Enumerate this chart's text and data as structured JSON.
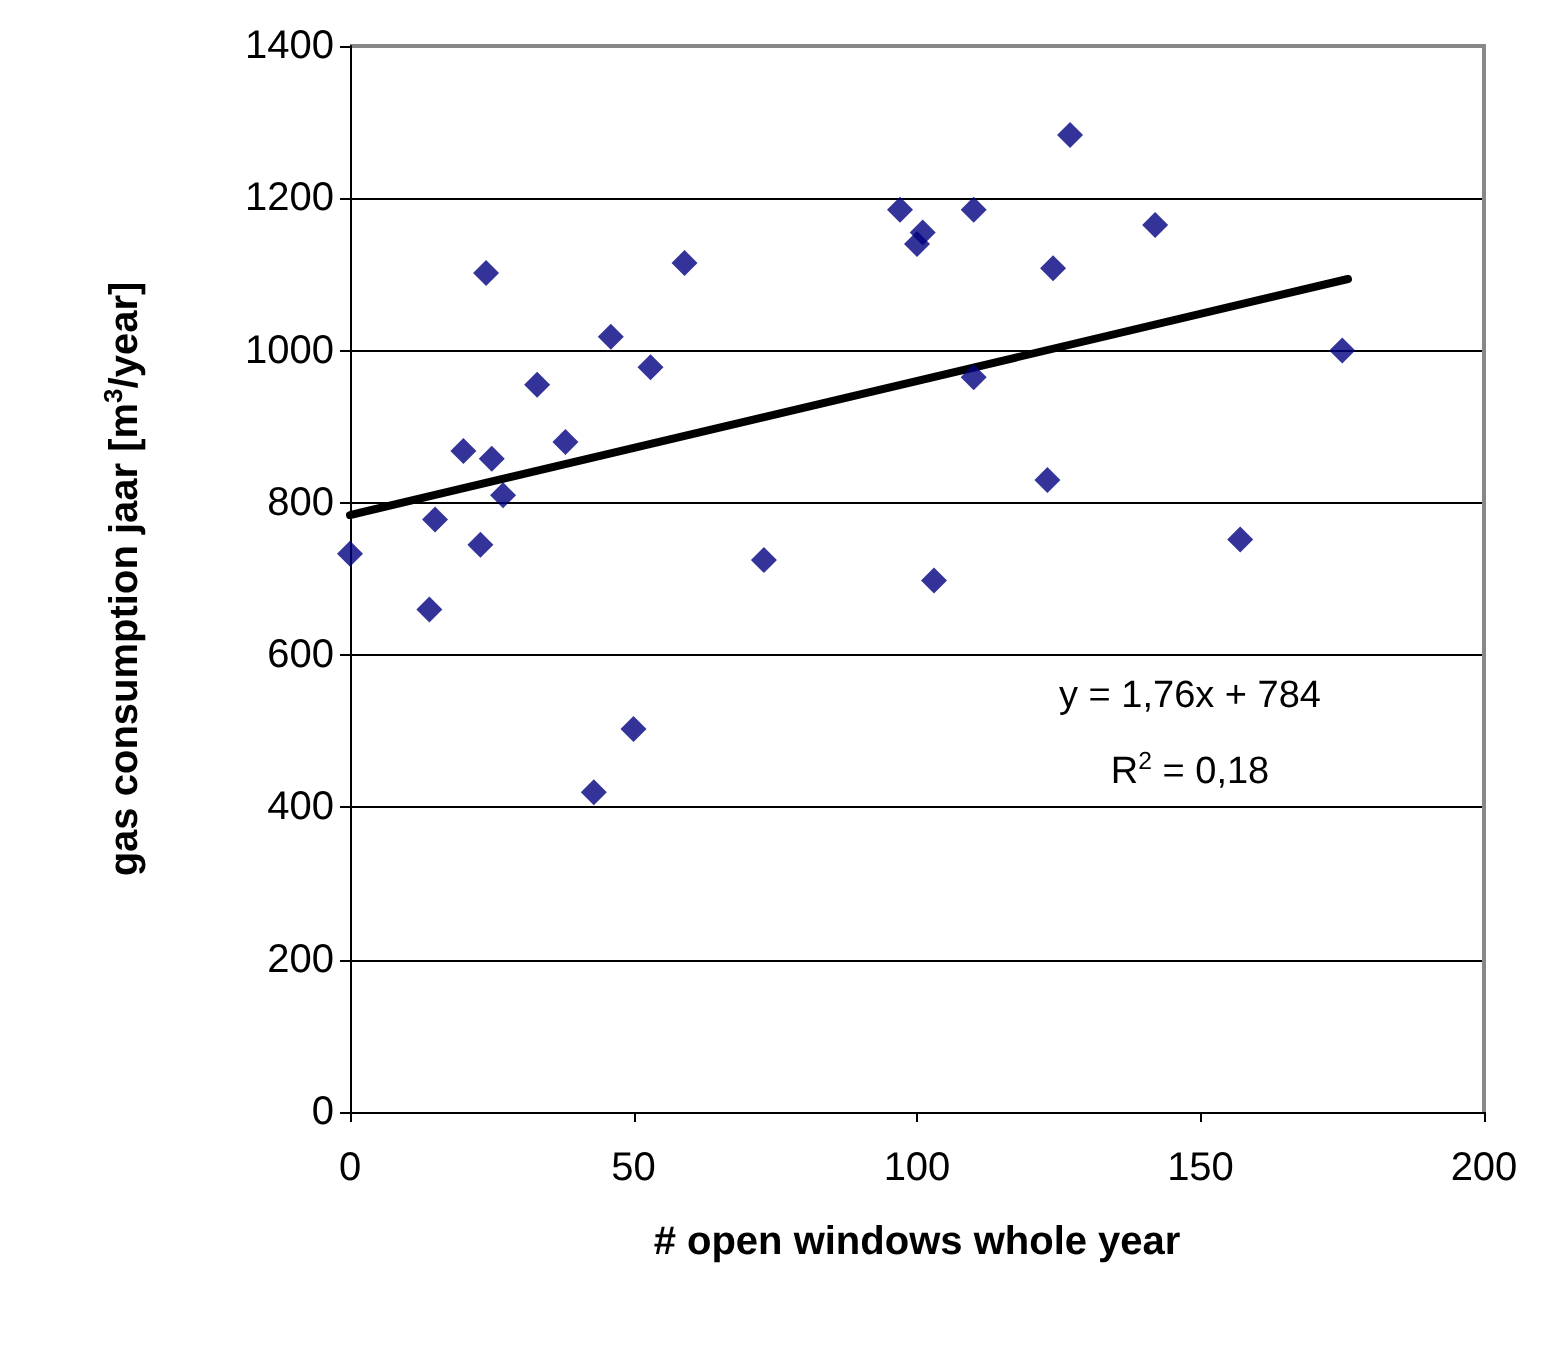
{
  "chart_data": {
    "type": "scatter",
    "xlabel": "# open windows whole year",
    "ylabel": "gas consumption jaar [m$^{3}$/year]",
    "xlim": [
      0,
      200
    ],
    "xticks": [
      0,
      50,
      100,
      150,
      200
    ],
    "ylim": [
      0,
      1400
    ],
    "yticks": [
      0,
      200,
      400,
      600,
      800,
      1000,
      1200,
      1400
    ],
    "grid": "y",
    "marker": "diamond",
    "series": [
      {
        "color": "#000080",
        "x": [
          0,
          14,
          15,
          20,
          23,
          24,
          25,
          27,
          33,
          38,
          43,
          46,
          50,
          53,
          59,
          73,
          97,
          100,
          101,
          103,
          110,
          110,
          123,
          124,
          127,
          142,
          157,
          175
        ],
        "values": [
          733,
          660,
          778,
          868,
          745,
          1102,
          858,
          810,
          955,
          880,
          420,
          1018,
          503,
          978,
          1115,
          725,
          1185,
          1140,
          1155,
          698,
          1185,
          965,
          830,
          1108,
          1283,
          1165,
          752,
          1000
        ]
      },
      {
        "type": "line",
        "color": "#000000",
        "line_style": "solid",
        "marker": "none",
        "x": [
          0,
          176
        ],
        "values": [
          784,
          1094
        ]
      }
    ],
    "annotations": [
      "y = 1,76x + 784",
      "R$^{2}$ = 0,18"
    ]
  }
}
